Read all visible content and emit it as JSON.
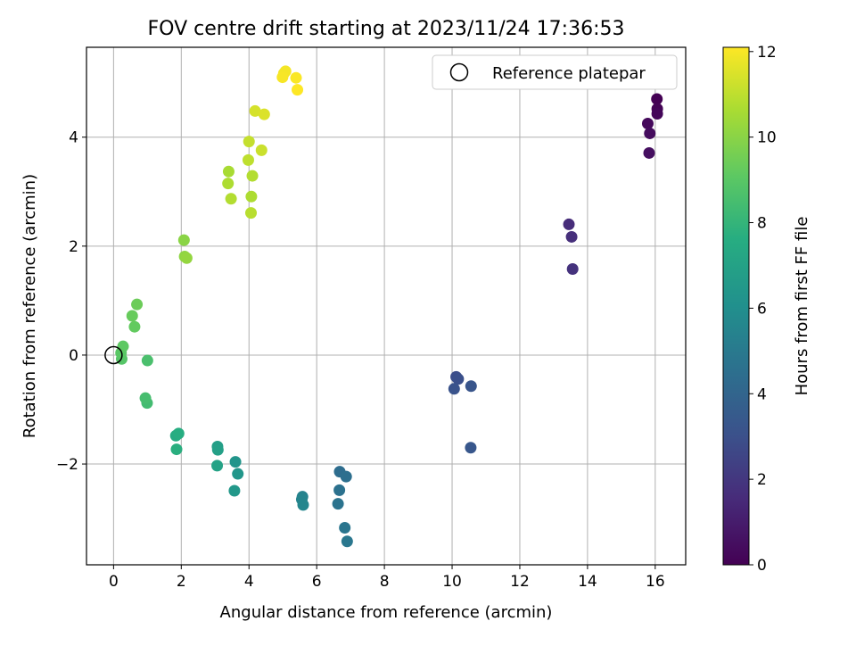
{
  "chart_data": {
    "type": "scatter",
    "title": "FOV centre drift starting at 2023/11/24 17:36:53",
    "xlabel": "Angular distance from reference (arcmin)",
    "ylabel": "Rotation from reference (arcmin)",
    "xlim": [
      -0.8,
      16.9
    ],
    "ylim": [
      -3.85,
      5.65
    ],
    "xticks": [
      0,
      2,
      4,
      6,
      8,
      10,
      12,
      14,
      16
    ],
    "yticks": [
      -2,
      0,
      2,
      4
    ],
    "xtick_labels": [
      "0",
      "2",
      "4",
      "6",
      "8",
      "10",
      "12",
      "14",
      "16"
    ],
    "ytick_labels": [
      "−2",
      "0",
      "2",
      "4"
    ],
    "grid": true,
    "legend": {
      "placement": "top-right",
      "entries": [
        "Reference platepar"
      ]
    },
    "reference_point": {
      "x": 0,
      "y": 0,
      "label": "Reference platepar"
    },
    "colorbar": {
      "label": "Hours from first FF file",
      "range": [
        0,
        12.1
      ],
      "ticks": [
        0,
        2,
        4,
        6,
        8,
        10,
        12
      ],
      "tick_labels": [
        "0",
        "2",
        "4",
        "6",
        "8",
        "10",
        "12"
      ],
      "colormap": "viridis"
    },
    "series": [
      {
        "points": [
          {
            "x": 16.05,
            "y": 4.7,
            "h": 0.0
          },
          {
            "x": 16.06,
            "y": 4.52,
            "h": 0.1
          },
          {
            "x": 16.06,
            "y": 4.43,
            "h": 0.2
          },
          {
            "x": 15.78,
            "y": 4.25,
            "h": 0.3
          },
          {
            "x": 15.84,
            "y": 4.07,
            "h": 0.4
          },
          {
            "x": 15.82,
            "y": 3.71,
            "h": 0.5
          },
          {
            "x": 13.45,
            "y": 2.4,
            "h": 1.6
          },
          {
            "x": 13.53,
            "y": 2.17,
            "h": 1.7
          },
          {
            "x": 13.56,
            "y": 1.58,
            "h": 1.8
          },
          {
            "x": 10.12,
            "y": -0.4,
            "h": 2.9
          },
          {
            "x": 10.18,
            "y": -0.44,
            "h": 3.0
          },
          {
            "x": 10.06,
            "y": -0.62,
            "h": 3.1
          },
          {
            "x": 10.56,
            "y": -0.57,
            "h": 3.2
          },
          {
            "x": 10.55,
            "y": -1.7,
            "h": 3.3
          },
          {
            "x": 6.68,
            "y": -2.14,
            "h": 4.4
          },
          {
            "x": 6.87,
            "y": -2.23,
            "h": 4.5
          },
          {
            "x": 6.67,
            "y": -2.48,
            "h": 4.6
          },
          {
            "x": 6.63,
            "y": -2.73,
            "h": 4.7
          },
          {
            "x": 6.83,
            "y": -3.17,
            "h": 4.8
          },
          {
            "x": 6.9,
            "y": -3.42,
            "h": 4.9
          },
          {
            "x": 5.58,
            "y": -2.6,
            "h": 5.4
          },
          {
            "x": 5.56,
            "y": -2.65,
            "h": 5.5
          },
          {
            "x": 5.6,
            "y": -2.75,
            "h": 5.6
          },
          {
            "x": 3.6,
            "y": -1.96,
            "h": 6.3
          },
          {
            "x": 3.67,
            "y": -2.18,
            "h": 6.4
          },
          {
            "x": 3.57,
            "y": -2.49,
            "h": 6.5
          },
          {
            "x": 3.07,
            "y": -1.68,
            "h": 6.8
          },
          {
            "x": 3.08,
            "y": -1.74,
            "h": 6.9
          },
          {
            "x": 3.06,
            "y": -2.03,
            "h": 7.0
          },
          {
            "x": 1.84,
            "y": -1.48,
            "h": 7.5
          },
          {
            "x": 1.92,
            "y": -1.44,
            "h": 7.6
          },
          {
            "x": 1.86,
            "y": -1.73,
            "h": 7.7
          },
          {
            "x": 0.99,
            "y": -0.88,
            "h": 8.4
          },
          {
            "x": 0.94,
            "y": -0.79,
            "h": 8.5
          },
          {
            "x": 1.0,
            "y": -0.1,
            "h": 8.6
          },
          {
            "x": 0.24,
            "y": -0.07,
            "h": 8.9
          },
          {
            "x": 0.22,
            "y": 0.04,
            "h": 9.0
          },
          {
            "x": 0.28,
            "y": 0.16,
            "h": 9.1
          },
          {
            "x": 0.62,
            "y": 0.52,
            "h": 9.2
          },
          {
            "x": 0.55,
            "y": 0.72,
            "h": 9.3
          },
          {
            "x": 0.69,
            "y": 0.93,
            "h": 9.4
          },
          {
            "x": 2.08,
            "y": 2.11,
            "h": 10.0
          },
          {
            "x": 2.1,
            "y": 1.81,
            "h": 10.1
          },
          {
            "x": 2.16,
            "y": 1.78,
            "h": 10.2
          },
          {
            "x": 3.4,
            "y": 3.37,
            "h": 10.6
          },
          {
            "x": 3.38,
            "y": 3.15,
            "h": 10.7
          },
          {
            "x": 3.47,
            "y": 2.87,
            "h": 10.8
          },
          {
            "x": 4.07,
            "y": 2.91,
            "h": 10.7
          },
          {
            "x": 4.1,
            "y": 3.29,
            "h": 10.8
          },
          {
            "x": 4.06,
            "y": 2.61,
            "h": 10.9
          },
          {
            "x": 3.98,
            "y": 3.58,
            "h": 11.0
          },
          {
            "x": 4.0,
            "y": 3.92,
            "h": 11.1
          },
          {
            "x": 4.37,
            "y": 3.76,
            "h": 11.2
          },
          {
            "x": 4.18,
            "y": 4.48,
            "h": 11.4
          },
          {
            "x": 4.45,
            "y": 4.42,
            "h": 11.5
          },
          {
            "x": 5.03,
            "y": 5.17,
            "h": 11.9
          },
          {
            "x": 5.08,
            "y": 5.21,
            "h": 11.95
          },
          {
            "x": 4.99,
            "y": 5.1,
            "h": 12.0
          },
          {
            "x": 5.39,
            "y": 5.09,
            "h": 12.05
          },
          {
            "x": 5.43,
            "y": 4.87,
            "h": 12.1
          }
        ]
      }
    ]
  }
}
